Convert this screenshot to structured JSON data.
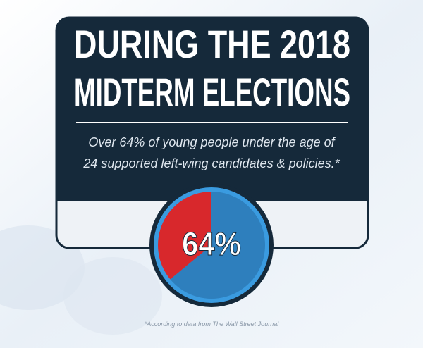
{
  "chart_data": {
    "type": "pie",
    "title_lines": [
      "DURING THE 2018",
      "MIDTERM ELECTIONS"
    ],
    "subtitle_lines": [
      "Over 64% of young people under the age of",
      "24 supported left-wing candidates & policies.*"
    ],
    "values": [
      64,
      36
    ],
    "colors": [
      "#2e7fbd",
      "#d8282c"
    ],
    "center_label": "64%",
    "note": "*According to data from The Wall Street Journal"
  }
}
